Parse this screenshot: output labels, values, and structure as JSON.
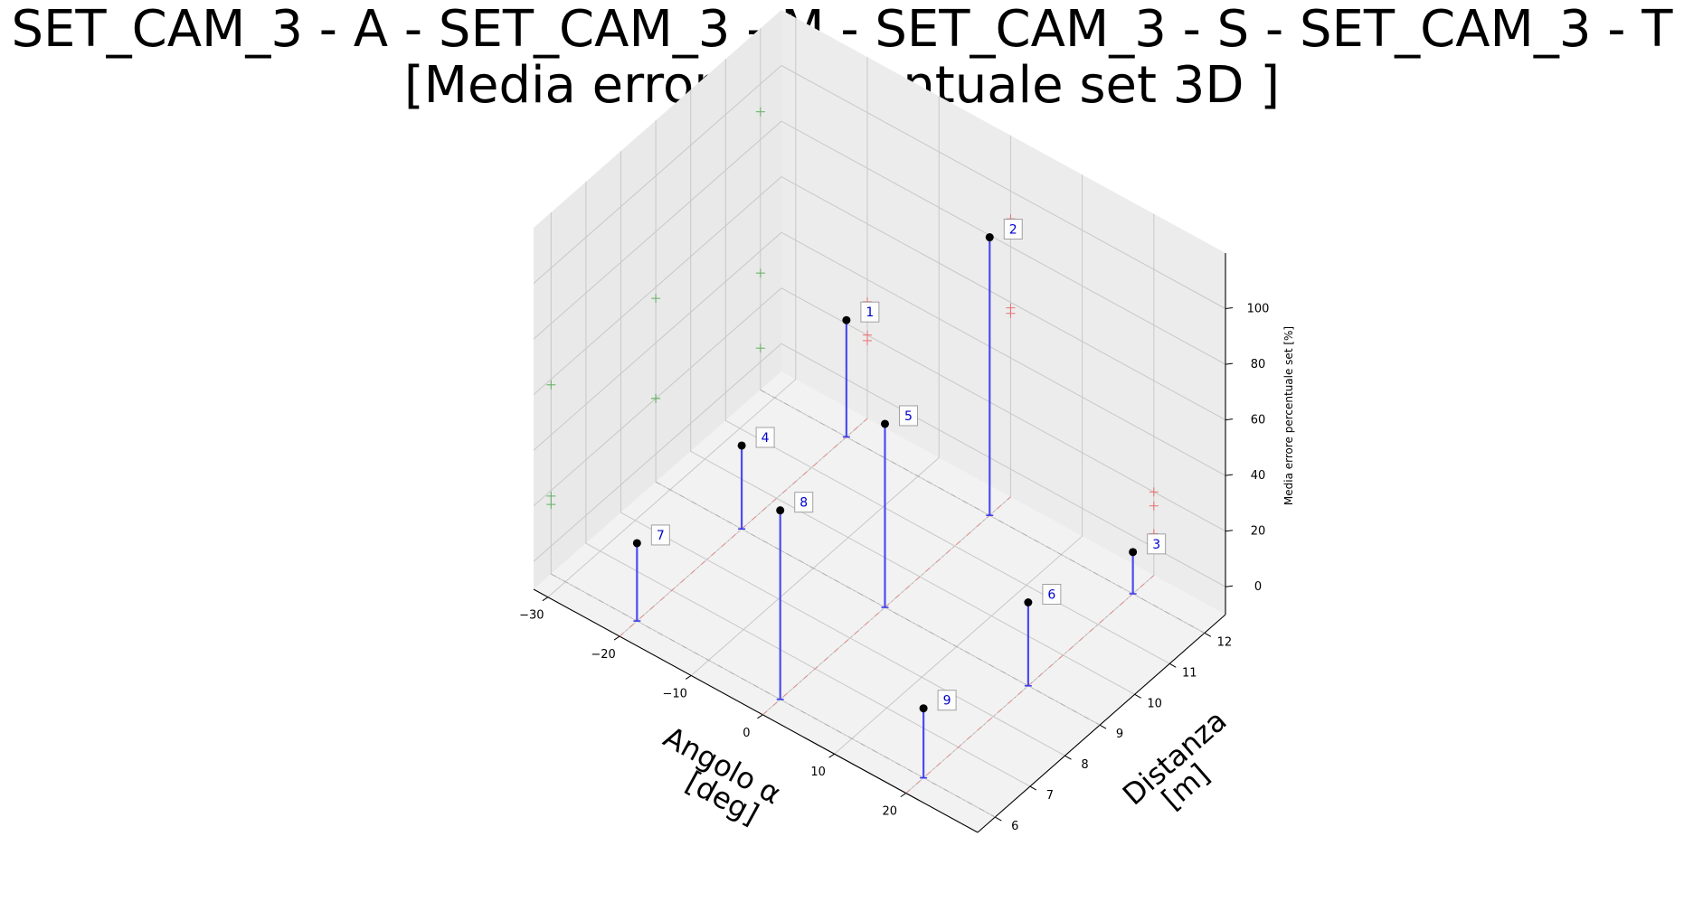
{
  "chart_data": {
    "type": "scatter",
    "title_line1": "SET_CAM_3 - A - SET_CAM_3 - M - SET_CAM_3 - S - SET_CAM_3 - T",
    "title_line2": "[Media errore percentuale set 3D ]",
    "xlabel_line1": "Angolo α",
    "xlabel_line2": "[deg]",
    "ylabel_line1": "Distanza",
    "ylabel_line2": "[m]",
    "zlabel": "Media errore percentuale set [%]",
    "xlim": [
      -32,
      30
    ],
    "ylim": [
      5.5,
      12.6
    ],
    "zlim": [
      -10,
      120
    ],
    "xticks": [
      -30,
      -20,
      -10,
      0,
      10,
      20
    ],
    "xtick_labels": [
      "−30",
      "−20",
      "−10",
      "0",
      "10",
      "20"
    ],
    "yticks": [
      6,
      7,
      8,
      9,
      10,
      11,
      12
    ],
    "ytick_labels": [
      "6",
      "7",
      "8",
      "9",
      "10",
      "11",
      "12"
    ],
    "zticks": [
      0,
      20,
      40,
      60,
      80,
      100
    ],
    "ztick_labels": [
      "0",
      "20",
      "40",
      "60",
      "80",
      "100"
    ],
    "grid": true,
    "colors": {
      "stem": "#3b3bf0",
      "point": "#000000",
      "label_text": "#0000cc",
      "proj_x": "#e87070",
      "proj_y": "#60b060",
      "pane_floor": "#f2f2f2",
      "pane_side": "#e9e9e9",
      "pane_back": "#ececec"
    },
    "points": [
      {
        "label": "1",
        "x": -20,
        "y": 12.0,
        "z": 32
      },
      {
        "label": "2",
        "x": 0,
        "y": 12.0,
        "z": 90
      },
      {
        "label": "3",
        "x": 20,
        "y": 12.0,
        "z": 5
      },
      {
        "label": "4",
        "x": -20,
        "y": 9.0,
        "z": 20
      },
      {
        "label": "5",
        "x": 0,
        "y": 9.0,
        "z": 56
      },
      {
        "label": "6",
        "x": 20,
        "y": 9.0,
        "z": 20
      },
      {
        "label": "7",
        "x": -20,
        "y": 6.0,
        "z": 18
      },
      {
        "label": "8",
        "x": 0,
        "y": 6.0,
        "z": 58
      },
      {
        "label": "9",
        "x": 20,
        "y": 6.0,
        "z": 15
      }
    ]
  }
}
